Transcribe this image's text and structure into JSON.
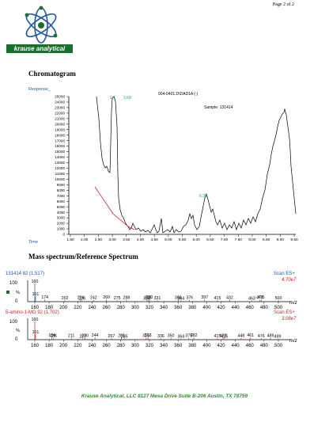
{
  "header": {
    "page_number": "Page 2 of 2",
    "logo_text": "krause analytical"
  },
  "chromatogram": {
    "section_title": "Chromatogram",
    "response_label": "Response_",
    "time_label": "Time",
    "file_label": "004-0401.D\\DAD1A (-)",
    "sample_label": "Sample:  131414",
    "peak_labels": [
      "2.1",
      "3.68",
      "6.38"
    ],
    "y_ticks": [
      "0",
      "1000",
      "2000",
      "3000",
      "4000",
      "5000",
      "6000",
      "7000",
      "8000",
      "9000",
      "10000",
      "11000",
      "12000",
      "13000",
      "14000",
      "15000",
      "16000",
      "17000",
      "18000",
      "19000",
      "20000",
      "21000",
      "22000",
      "23000",
      "24000",
      "25000"
    ],
    "x_ticks": [
      "1.50",
      "2.00",
      "2.50",
      "3.00",
      "3.50",
      "4.00",
      "4.50",
      "5.00",
      "5.50",
      "6.00",
      "6.50",
      "7.00",
      "7.50",
      "8.00",
      "8.50",
      "9.00",
      "9.50"
    ]
  },
  "mass_spectrum": {
    "section_title": "Mass spectrum/Reference Spectrum",
    "top": {
      "sample_id": "131414 82 (1.517)",
      "scan_label": "Scan ES+",
      "intensity": "4.70e7",
      "y_max": "100",
      "y_zero": "0",
      "percent": "%",
      "peak_labels": [
        "160",
        "161",
        "174",
        "202",
        "224",
        "226",
        "242",
        "260",
        "275",
        "288",
        "316",
        "318",
        "320",
        "331",
        "360",
        "364",
        "376",
        "397",
        "415",
        "432",
        "463",
        "474",
        "476",
        "500"
      ]
    },
    "bottom": {
      "sample_id": "5-amino-1-MG 92 (1.702)",
      "scan_label": "Scan ES+",
      "intensity": "3.08e7",
      "y_max": "100",
      "y_zero": "0",
      "percent": "%",
      "peak_labels": [
        "160",
        "161",
        "184",
        "186",
        "211",
        "227",
        "230",
        "244",
        "267",
        "281",
        "285",
        "315",
        "318",
        "336",
        "350",
        "364",
        "375",
        "382",
        "415",
        "423",
        "425",
        "448",
        "461",
        "476",
        "489",
        "499"
      ]
    },
    "x_ticks": [
      "160",
      "180",
      "200",
      "220",
      "240",
      "260",
      "280",
      "300",
      "320",
      "340",
      "360",
      "380",
      "400",
      "420",
      "440",
      "460",
      "480",
      "500"
    ],
    "x_unit": "m/z"
  },
  "footer": {
    "text": "Krause Analytical, LLC   8127 Mesa Drive  Suite B-206   Austin, TX 78759"
  },
  "colors": {
    "logo_green": "#1a6e2e",
    "accent_blue": "#1e56a0",
    "peak_label_teal": "#2a9d9a",
    "red": "#d02020",
    "footer_green": "#2e8b2e"
  }
}
